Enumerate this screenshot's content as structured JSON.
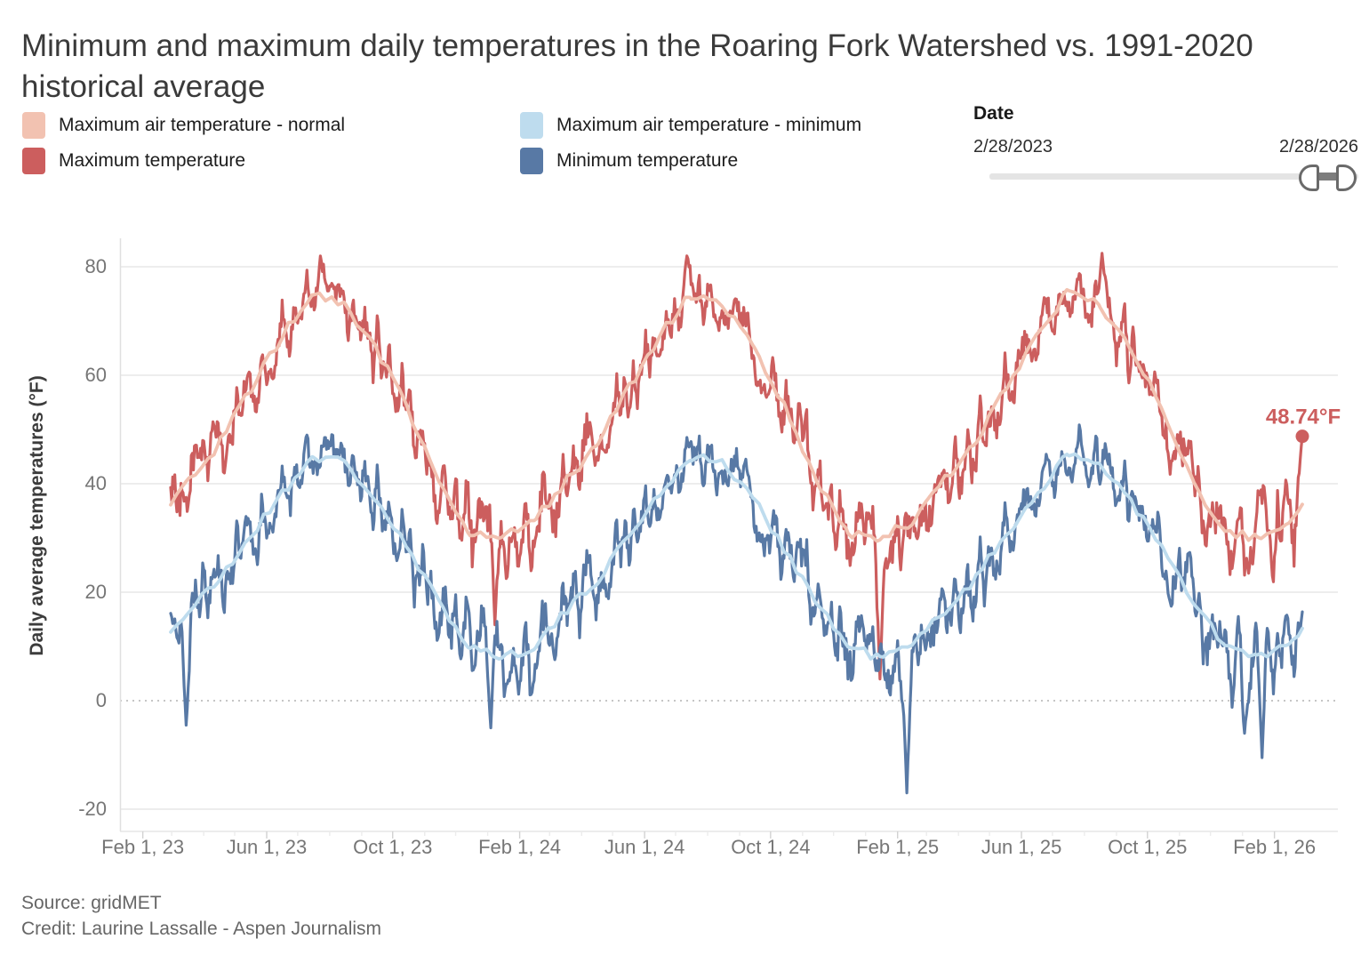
{
  "header": {
    "title": "Minimum and maximum daily temperatures in the Roaring Fork Watershed vs. 1991-2020 historical average"
  },
  "legend": {
    "items": [
      {
        "label": "Maximum air temperature - normal",
        "color": "#f2c2b1"
      },
      {
        "label": "Maximum temperature",
        "color": "#cc5e5e"
      },
      {
        "label": "Maximum air temperature - minimum",
        "color": "#bedcee"
      },
      {
        "label": "Minimum temperature",
        "color": "#5879a5"
      }
    ]
  },
  "date_control": {
    "label": "Date",
    "start": "2/28/2023",
    "end": "2/28/2026"
  },
  "chart_data": {
    "type": "line",
    "title": "Minimum and maximum daily temperatures in the Roaring Fork Watershed vs. 1991-2020 historical average",
    "xlabel": "",
    "ylabel": "Daily average temperatures (°F)",
    "ylim": [
      -25,
      85
    ],
    "y_ticks": [
      80,
      60,
      40,
      20,
      0,
      -20
    ],
    "grid": true,
    "zero_line_dotted": true,
    "legend_position": "top-left",
    "x_start_date": "2023-02-28",
    "x_end_date": "2026-02-28",
    "days_total": 1096,
    "x_ticks": [
      {
        "label": "Feb 1, 23",
        "day": -27
      },
      {
        "label": "Jun 1, 23",
        "day": 93
      },
      {
        "label": "Oct 1, 23",
        "day": 215
      },
      {
        "label": "Feb 1, 24",
        "day": 338
      },
      {
        "label": "Jun 1, 24",
        "day": 459
      },
      {
        "label": "Oct 1, 24",
        "day": 581
      },
      {
        "label": "Feb 1, 25",
        "day": 704
      },
      {
        "label": "Jun 1, 25",
        "day": 824
      },
      {
        "label": "Oct 1, 25",
        "day": 946
      },
      {
        "label": "Feb 1, 26",
        "day": 1069
      }
    ],
    "series": [
      {
        "name": "Maximum temperature",
        "color": "#cc5e5e",
        "width": 3.2,
        "kind": "actual",
        "monthly_normals": [
          30,
          33,
          40,
          47,
          57,
          67,
          75,
          73,
          65,
          54,
          40,
          31
        ],
        "low_amp": 6.5,
        "high_amp": 2.5,
        "end_dot": true
      },
      {
        "name": "Minimum temperature",
        "color": "#5879a5",
        "width": 3.2,
        "kind": "actual",
        "monthly_normals": [
          8,
          10,
          16,
          22,
          30,
          38,
          45,
          44,
          37,
          28,
          18,
          10
        ],
        "low_amp": 6.5,
        "high_amp": 2.5
      },
      {
        "name": "Maximum air temperature - minimum",
        "color": "#bedcee",
        "width": 3.8,
        "kind": "normal",
        "monthly_normals": [
          8,
          10,
          16,
          22,
          30,
          38,
          45,
          44,
          37,
          28,
          18,
          10
        ],
        "wiggle": 0.9
      },
      {
        "name": "Maximum air temperature - normal",
        "color": "#f2c2b1",
        "width": 3.8,
        "kind": "normal",
        "monthly_normals": [
          30,
          33,
          40,
          47,
          57,
          67,
          75,
          73,
          65,
          54,
          40,
          31
        ],
        "wiggle": 0.9
      }
    ],
    "events": [
      {
        "series": 0,
        "day": 145,
        "value": 82
      },
      {
        "series": 0,
        "day": 314,
        "value": 14
      },
      {
        "series": 0,
        "day": 500,
        "value": 82
      },
      {
        "series": 0,
        "day": 687,
        "value": 4
      },
      {
        "series": 0,
        "day": 902,
        "value": 82.5
      },
      {
        "series": 0,
        "day": 1096,
        "value": 48.74
      },
      {
        "series": 1,
        "day": 15,
        "value": -4.5
      },
      {
        "series": 1,
        "day": 310,
        "value": -5
      },
      {
        "series": 1,
        "day": 713,
        "value": -17
      },
      {
        "series": 1,
        "day": 1040,
        "value": -6
      },
      {
        "series": 1,
        "day": 1057,
        "value": -10.5
      }
    ],
    "annotation": {
      "text": "48.74°F",
      "day": 1096,
      "value": 48.74,
      "color": "#cc5e5e"
    },
    "noise_seed": 5
  },
  "footer": {
    "source": "Source: gridMET",
    "credit": "Credit: Laurine Lassalle - Aspen Journalism"
  }
}
